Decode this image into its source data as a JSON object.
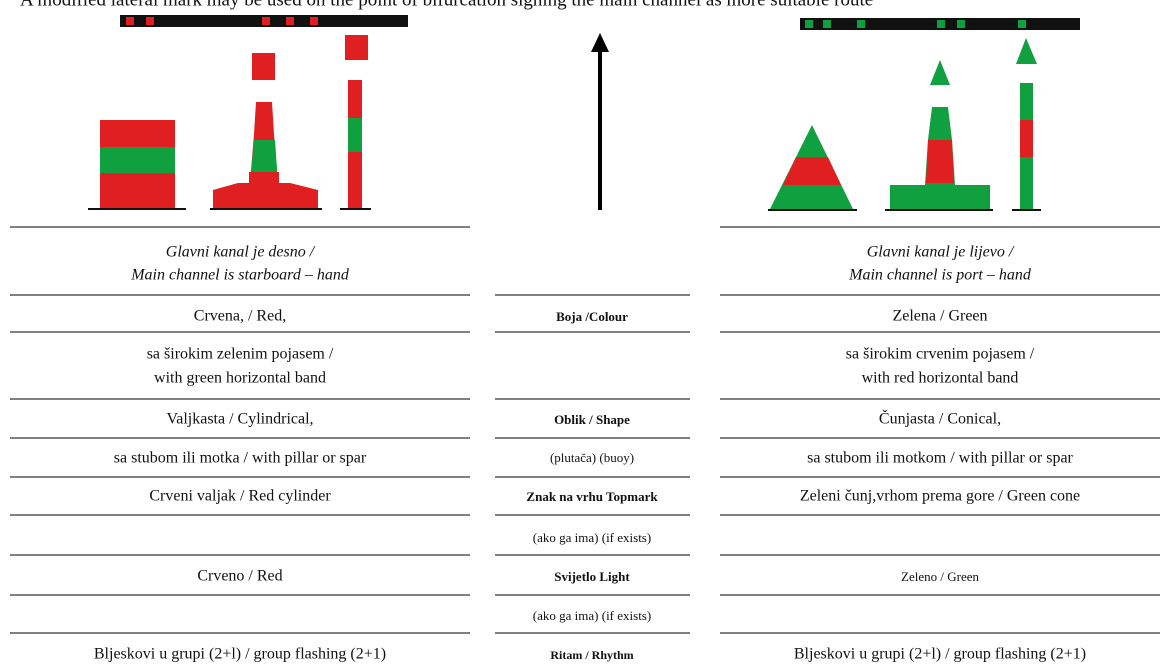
{
  "caption": "A modified lateral mark may be used on the point of bifurcation signing the main channel as more suitable route",
  "starboard": {
    "heading_line1": "Glavni kanal je desno /",
    "heading_line2": "Main channel is starboard – hand",
    "colour": "Crvena, / Red,",
    "band_line1": "sa širokim zelenim pojasem /",
    "band_line2": "with green horizontal band",
    "shape": "Valjkasta / Cylindrical,",
    "shape_detail": "sa stubom ili motka / with pillar or spar",
    "topmark": "Crveni valjak / Red cylinder",
    "light": "Crveno / Red",
    "rhythm": "Bljeskovi u grupi (2+l) / group flashing (2+1)"
  },
  "labels": {
    "colour": "Boja /Colour",
    "shape": "Oblik / Shape",
    "shape_note": "(plutača) (buoy)",
    "topmark": "Znak na vrhu Topmark",
    "topmark_note": "(ako ga ima) (if exists)",
    "light": "Svijetlo Light",
    "light_note": "(ako ga ima) (if exists)",
    "rhythm": "Ritam / Rhythm"
  },
  "port": {
    "heading_line1": "Glavni kanal je lijevo /",
    "heading_line2": "Main channel is port – hand",
    "colour": "Zelena / Green",
    "band_line1": "sa širokim crvenim pojasem /",
    "band_line2": "with red horizontal band",
    "shape": "Čunjasta / Conical,",
    "shape_detail": "sa stubom ili motkom / with pillar or spar",
    "topmark": "Zeleni čunj,vrhom prema gore / Green cone",
    "light": "Zeleno / Green",
    "rhythm": "Bljeskovi u grupi (2+l) / group flashing (2+1)"
  }
}
